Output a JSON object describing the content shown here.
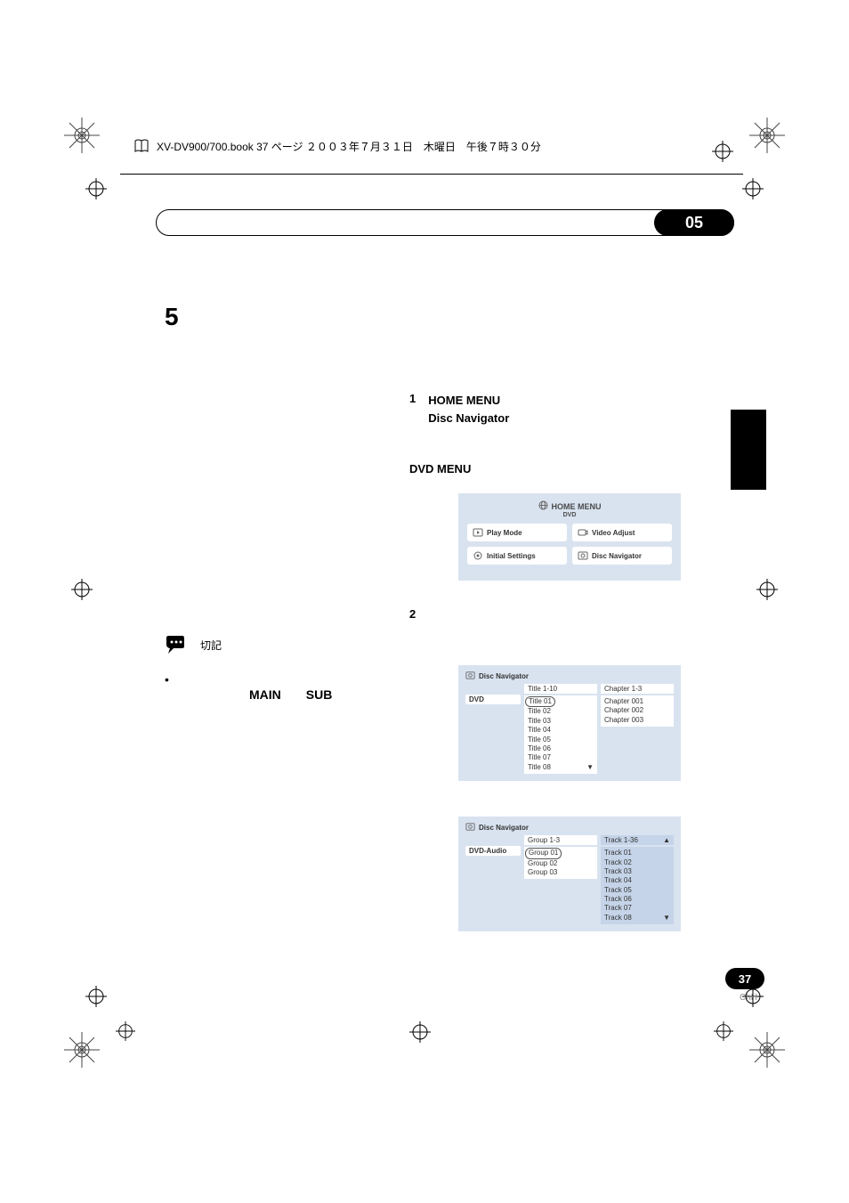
{
  "file_header": "XV-DV900/700.book  37 ページ  ２００３年７月３１日　木曜日　午後７時３０分",
  "section_badge": "05",
  "chapter_number": "5",
  "note_label": "切記",
  "bullet_mark": "•",
  "main_sub": "MAIN　　SUB",
  "step1": {
    "num": "1",
    "text": "HOME MENU\nDisc Navigator"
  },
  "dvd_menu_label": "DVD MENU",
  "step2": {
    "num": "2"
  },
  "home_menu": {
    "title": "HOME MENU",
    "sub": "DVD",
    "items": [
      "Play Mode",
      "Video Adjust",
      "Initial Settings",
      "Disc Navigator"
    ]
  },
  "nav1": {
    "header": "Disc Navigator",
    "left_label": "DVD",
    "mid_head": "Title 1-10",
    "right_head": "Chapter 1-3",
    "mid_items": [
      "Title 01",
      "Title 02",
      "Title 03",
      "Title 04",
      "Title 05",
      "Title 06",
      "Title 07",
      "Title 08"
    ],
    "right_items": [
      "Chapter 001",
      "Chapter 002",
      "Chapter 003"
    ],
    "mid_selected": 0
  },
  "nav2": {
    "header": "Disc Navigator",
    "left_label": "DVD-Audio",
    "mid_head": "Group 1-3",
    "right_head": "Track 1-36",
    "mid_items": [
      "Group 01",
      "Group 02",
      "Group 03"
    ],
    "right_items": [
      "Track 01",
      "Track 02",
      "Track 03",
      "Track 04",
      "Track 05",
      "Track 06",
      "Track 07",
      "Track 08"
    ],
    "mid_selected": 0,
    "right_highlight": true
  },
  "page_number": "37",
  "page_locale": "ChH",
  "colors": {
    "card_bg": "#d9e3f0",
    "badge_bg": "#000000"
  }
}
